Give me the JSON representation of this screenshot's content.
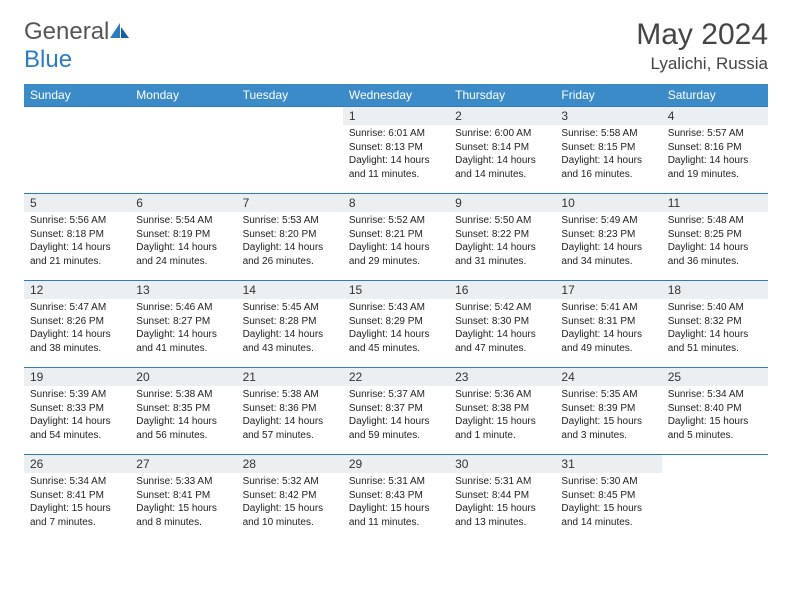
{
  "brand": {
    "part1": "General",
    "part2": "Blue"
  },
  "title": "May 2024",
  "location": "Lyalichi, Russia",
  "weekdays": [
    "Sunday",
    "Monday",
    "Tuesday",
    "Wednesday",
    "Thursday",
    "Friday",
    "Saturday"
  ],
  "colors": {
    "header_bg": "#3b8bc9",
    "border": "#2e7cc0",
    "daynum_bg": "#eceff1",
    "text": "#222222",
    "title": "#444444"
  },
  "weeks": [
    [
      null,
      null,
      null,
      {
        "n": "1",
        "sr": "6:01 AM",
        "ss": "8:13 PM",
        "dl": "14 hours and 11 minutes."
      },
      {
        "n": "2",
        "sr": "6:00 AM",
        "ss": "8:14 PM",
        "dl": "14 hours and 14 minutes."
      },
      {
        "n": "3",
        "sr": "5:58 AM",
        "ss": "8:15 PM",
        "dl": "14 hours and 16 minutes."
      },
      {
        "n": "4",
        "sr": "5:57 AM",
        "ss": "8:16 PM",
        "dl": "14 hours and 19 minutes."
      }
    ],
    [
      {
        "n": "5",
        "sr": "5:56 AM",
        "ss": "8:18 PM",
        "dl": "14 hours and 21 minutes."
      },
      {
        "n": "6",
        "sr": "5:54 AM",
        "ss": "8:19 PM",
        "dl": "14 hours and 24 minutes."
      },
      {
        "n": "7",
        "sr": "5:53 AM",
        "ss": "8:20 PM",
        "dl": "14 hours and 26 minutes."
      },
      {
        "n": "8",
        "sr": "5:52 AM",
        "ss": "8:21 PM",
        "dl": "14 hours and 29 minutes."
      },
      {
        "n": "9",
        "sr": "5:50 AM",
        "ss": "8:22 PM",
        "dl": "14 hours and 31 minutes."
      },
      {
        "n": "10",
        "sr": "5:49 AM",
        "ss": "8:23 PM",
        "dl": "14 hours and 34 minutes."
      },
      {
        "n": "11",
        "sr": "5:48 AM",
        "ss": "8:25 PM",
        "dl": "14 hours and 36 minutes."
      }
    ],
    [
      {
        "n": "12",
        "sr": "5:47 AM",
        "ss": "8:26 PM",
        "dl": "14 hours and 38 minutes."
      },
      {
        "n": "13",
        "sr": "5:46 AM",
        "ss": "8:27 PM",
        "dl": "14 hours and 41 minutes."
      },
      {
        "n": "14",
        "sr": "5:45 AM",
        "ss": "8:28 PM",
        "dl": "14 hours and 43 minutes."
      },
      {
        "n": "15",
        "sr": "5:43 AM",
        "ss": "8:29 PM",
        "dl": "14 hours and 45 minutes."
      },
      {
        "n": "16",
        "sr": "5:42 AM",
        "ss": "8:30 PM",
        "dl": "14 hours and 47 minutes."
      },
      {
        "n": "17",
        "sr": "5:41 AM",
        "ss": "8:31 PM",
        "dl": "14 hours and 49 minutes."
      },
      {
        "n": "18",
        "sr": "5:40 AM",
        "ss": "8:32 PM",
        "dl": "14 hours and 51 minutes."
      }
    ],
    [
      {
        "n": "19",
        "sr": "5:39 AM",
        "ss": "8:33 PM",
        "dl": "14 hours and 54 minutes."
      },
      {
        "n": "20",
        "sr": "5:38 AM",
        "ss": "8:35 PM",
        "dl": "14 hours and 56 minutes."
      },
      {
        "n": "21",
        "sr": "5:38 AM",
        "ss": "8:36 PM",
        "dl": "14 hours and 57 minutes."
      },
      {
        "n": "22",
        "sr": "5:37 AM",
        "ss": "8:37 PM",
        "dl": "14 hours and 59 minutes."
      },
      {
        "n": "23",
        "sr": "5:36 AM",
        "ss": "8:38 PM",
        "dl": "15 hours and 1 minute."
      },
      {
        "n": "24",
        "sr": "5:35 AM",
        "ss": "8:39 PM",
        "dl": "15 hours and 3 minutes."
      },
      {
        "n": "25",
        "sr": "5:34 AM",
        "ss": "8:40 PM",
        "dl": "15 hours and 5 minutes."
      }
    ],
    [
      {
        "n": "26",
        "sr": "5:34 AM",
        "ss": "8:41 PM",
        "dl": "15 hours and 7 minutes."
      },
      {
        "n": "27",
        "sr": "5:33 AM",
        "ss": "8:41 PM",
        "dl": "15 hours and 8 minutes."
      },
      {
        "n": "28",
        "sr": "5:32 AM",
        "ss": "8:42 PM",
        "dl": "15 hours and 10 minutes."
      },
      {
        "n": "29",
        "sr": "5:31 AM",
        "ss": "8:43 PM",
        "dl": "15 hours and 11 minutes."
      },
      {
        "n": "30",
        "sr": "5:31 AM",
        "ss": "8:44 PM",
        "dl": "15 hours and 13 minutes."
      },
      {
        "n": "31",
        "sr": "5:30 AM",
        "ss": "8:45 PM",
        "dl": "15 hours and 14 minutes."
      },
      null
    ]
  ]
}
